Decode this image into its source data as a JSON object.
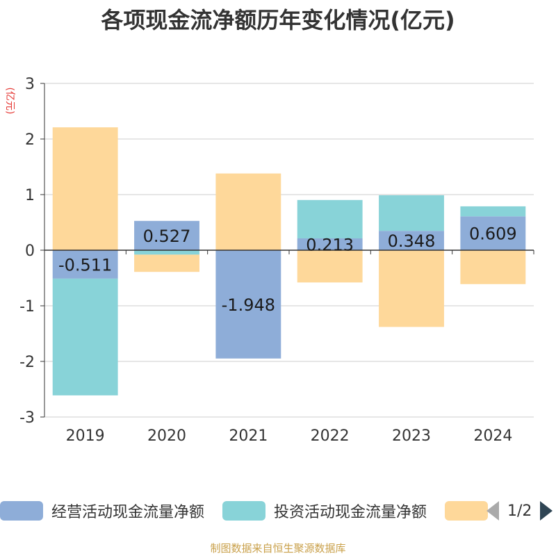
{
  "title": "各项现金流净额历年变化情况(亿元)",
  "footer": "制图数据来自恒生聚源数据库",
  "chart_data": {
    "type": "bar",
    "stacked": true,
    "ylabel": "(亿元)",
    "ylim": [
      -3,
      3
    ],
    "yticks": [
      3,
      2,
      1,
      0,
      -1,
      -2,
      -3
    ],
    "grid": true,
    "categories": [
      "2019",
      "2020",
      "2021",
      "2022",
      "2023",
      "2024"
    ],
    "series": [
      {
        "name": "经营活动现金流量净额",
        "color": "#8eadd8",
        "values": [
          -0.511,
          0.527,
          -1.948,
          0.213,
          0.348,
          0.609
        ],
        "labels": [
          "-0.511",
          "0.527",
          "-1.948",
          "0.213",
          "0.348",
          "0.609"
        ]
      },
      {
        "name": "投资活动现金流量净额",
        "color": "#88d3d8",
        "values": [
          -2.1,
          -0.08,
          0.0,
          0.69,
          0.64,
          0.18
        ]
      },
      {
        "name": "",
        "color": "#fed89a",
        "values": [
          2.21,
          -0.31,
          1.38,
          -0.58,
          -1.38,
          -0.61
        ]
      }
    ],
    "legend": {
      "position": "bottom",
      "page": "1/2"
    }
  }
}
